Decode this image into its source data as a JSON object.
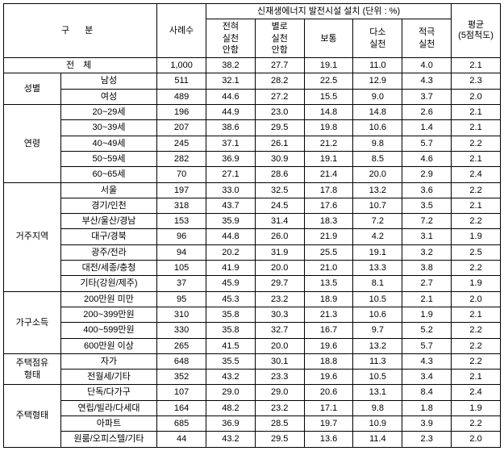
{
  "header": {
    "category": "구   분",
    "cases": "사례수",
    "group_title": "신재생에너지 발전시설 설치 (단위 : %)",
    "cols": [
      "전혀\n실천\n안함",
      "별로\n실천\n안함",
      "보통",
      "다소\n실천",
      "적극\n실천"
    ],
    "avg": "평균\n(5점척도)"
  },
  "total": {
    "label": "전   체",
    "cases": "1,000",
    "v": [
      "38.2",
      "27.7",
      "19.1",
      "11.0",
      "4.0"
    ],
    "avg": "2.1"
  },
  "groups": [
    {
      "name": "성별",
      "rows": [
        {
          "label": "남성",
          "cases": "511",
          "v": [
            "32.1",
            "28.2",
            "22.5",
            "12.9",
            "4.3"
          ],
          "avg": "2.3"
        },
        {
          "label": "여성",
          "cases": "489",
          "v": [
            "44.6",
            "27.2",
            "15.5",
            "9.0",
            "3.7"
          ],
          "avg": "2.0"
        }
      ]
    },
    {
      "name": "연령",
      "rows": [
        {
          "label": "20~29세",
          "cases": "196",
          "v": [
            "44.9",
            "23.0",
            "14.8",
            "14.8",
            "2.6"
          ],
          "avg": "2.1"
        },
        {
          "label": "30~39세",
          "cases": "207",
          "v": [
            "38.6",
            "29.5",
            "19.8",
            "10.6",
            "1.4"
          ],
          "avg": "2.1"
        },
        {
          "label": "40~49세",
          "cases": "245",
          "v": [
            "37.1",
            "26.1",
            "21.2",
            "9.8",
            "5.7"
          ],
          "avg": "2.2"
        },
        {
          "label": "50~59세",
          "cases": "282",
          "v": [
            "36.9",
            "30.9",
            "19.1",
            "8.5",
            "4.6"
          ],
          "avg": "2.1"
        },
        {
          "label": "60~65세",
          "cases": "70",
          "v": [
            "27.1",
            "28.6",
            "21.4",
            "20.0",
            "2.9"
          ],
          "avg": "2.4"
        }
      ]
    },
    {
      "name": "거주지역",
      "rows": [
        {
          "label": "서울",
          "cases": "197",
          "v": [
            "33.0",
            "32.5",
            "17.8",
            "13.2",
            "3.6"
          ],
          "avg": "2.2"
        },
        {
          "label": "경기/인천",
          "cases": "318",
          "v": [
            "43.7",
            "24.5",
            "17.6",
            "10.7",
            "3.5"
          ],
          "avg": "2.1"
        },
        {
          "label": "부산/울산/경남",
          "cases": "153",
          "v": [
            "35.9",
            "31.4",
            "18.3",
            "7.2",
            "7.2"
          ],
          "avg": "2.2"
        },
        {
          "label": "대구/경북",
          "cases": "96",
          "v": [
            "44.8",
            "26.0",
            "21.9",
            "4.2",
            "3.1"
          ],
          "avg": "1.9"
        },
        {
          "label": "광주/전라",
          "cases": "94",
          "v": [
            "20.2",
            "31.9",
            "25.5",
            "19.1",
            "3.2"
          ],
          "avg": "2.5"
        },
        {
          "label": "대전/세종/충청",
          "cases": "105",
          "v": [
            "41.9",
            "20.0",
            "21.0",
            "13.3",
            "3.8"
          ],
          "avg": "2.2"
        },
        {
          "label": "기타(강원/제주)",
          "cases": "37",
          "v": [
            "45.9",
            "29.7",
            "13.5",
            "8.1",
            "2.7"
          ],
          "avg": "1.9"
        }
      ]
    },
    {
      "name": "가구소득",
      "rows": [
        {
          "label": "200만원 미만",
          "cases": "95",
          "v": [
            "45.3",
            "23.2",
            "18.9",
            "10.5",
            "2.1"
          ],
          "avg": "2.0"
        },
        {
          "label": "200~399만원",
          "cases": "310",
          "v": [
            "35.8",
            "30.3",
            "21.3",
            "10.6",
            "1.9"
          ],
          "avg": "2.1"
        },
        {
          "label": "400~599만원",
          "cases": "330",
          "v": [
            "35.8",
            "32.7",
            "16.7",
            "9.7",
            "5.2"
          ],
          "avg": "2.2"
        },
        {
          "label": "600만원 이상",
          "cases": "265",
          "v": [
            "41.5",
            "20.0",
            "19.6",
            "13.2",
            "5.7"
          ],
          "avg": "2.2"
        }
      ]
    },
    {
      "name": "주택점유\n형태",
      "rows": [
        {
          "label": "자가",
          "cases": "648",
          "v": [
            "35.5",
            "30.1",
            "18.8",
            "11.3",
            "4.3"
          ],
          "avg": "2.2"
        },
        {
          "label": "전월세/기타",
          "cases": "352",
          "v": [
            "43.2",
            "23.3",
            "19.6",
            "10.5",
            "3.4"
          ],
          "avg": "2.1"
        }
      ]
    },
    {
      "name": "주택형태",
      "rows": [
        {
          "label": "단독/다가구",
          "cases": "107",
          "v": [
            "29.0",
            "29.0",
            "20.6",
            "13.1",
            "8.4"
          ],
          "avg": "2.4"
        },
        {
          "label": "연립/빌라/다세대",
          "cases": "164",
          "v": [
            "48.2",
            "23.2",
            "17.1",
            "9.8",
            "1.8"
          ],
          "avg": "1.9"
        },
        {
          "label": "아파트",
          "cases": "685",
          "v": [
            "36.9",
            "28.5",
            "19.7",
            "10.9",
            "3.9"
          ],
          "avg": "2.2"
        },
        {
          "label": "원룸/오피스텔/기타",
          "cases": "44",
          "v": [
            "43.2",
            "29.5",
            "13.6",
            "11.4",
            "2.3"
          ],
          "avg": "2.0"
        }
      ]
    }
  ]
}
